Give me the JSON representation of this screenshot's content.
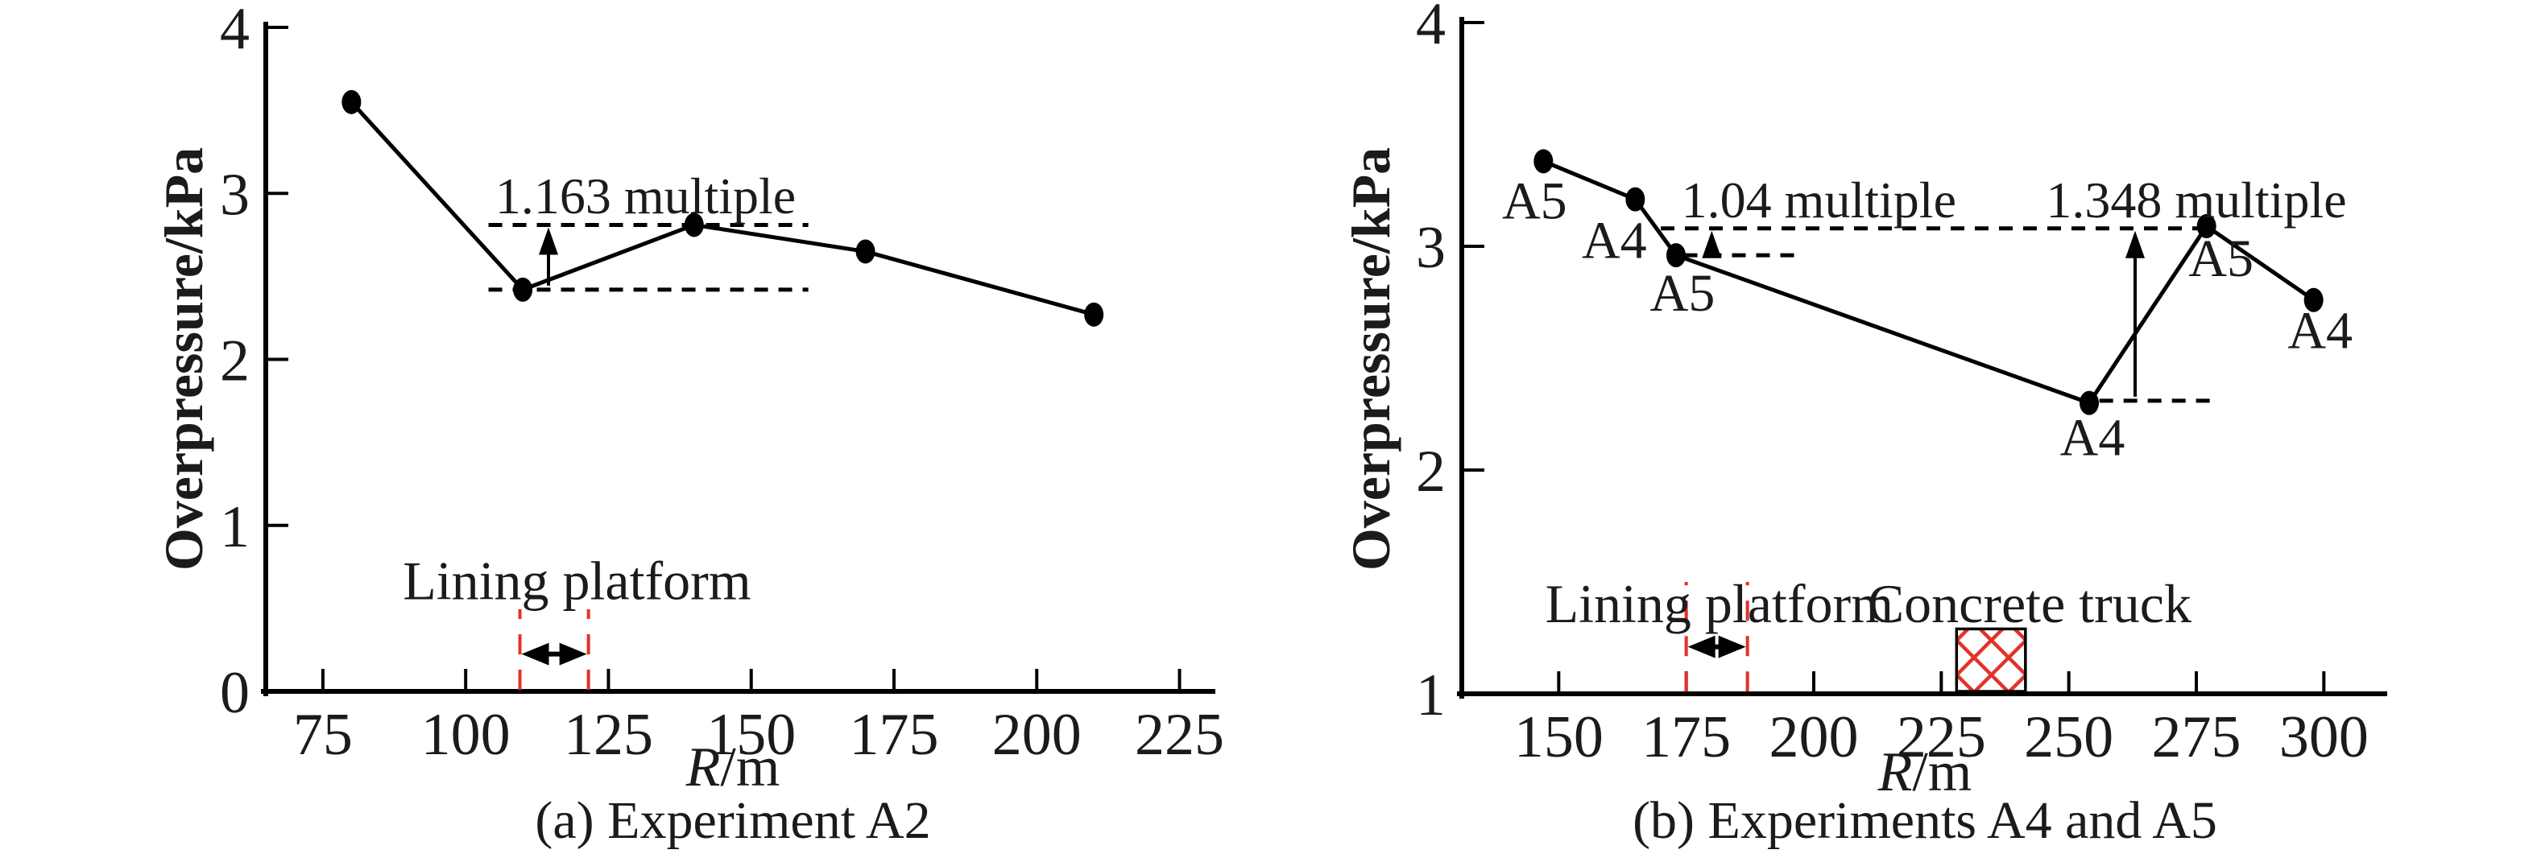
{
  "figure": {
    "background": "#ffffff",
    "ink_color": "#000000",
    "text_color": "#1b1b1b",
    "red_dashed_color": "#e23228"
  },
  "chart_data": [
    {
      "type": "line",
      "caption": "(a) Experiment A2",
      "xlabel_var": "R",
      "xlabel_unit": "/m",
      "ylabel": "Overpressure/kPa",
      "xlim": [
        65,
        230
      ],
      "ylim": [
        0,
        4
      ],
      "xticks": [
        75,
        100,
        125,
        150,
        175,
        200,
        225
      ],
      "yticks": [
        0,
        1,
        2,
        3,
        4
      ],
      "grid": false,
      "legend": "none",
      "series": [
        {
          "name": "A2",
          "points": [
            [
              80,
              3.55
            ],
            [
              110,
              2.42
            ],
            [
              140,
              2.81
            ],
            [
              170,
              2.65
            ],
            [
              210,
              2.27
            ]
          ],
          "point_labels": [
            "",
            "",
            "",
            "",
            ""
          ],
          "label_offsets": []
        }
      ],
      "annotations": {
        "labels": [
          {
            "text": "1.163 multiple",
            "x": 131.5,
            "y": 2.88
          }
        ],
        "h_dashes": [
          {
            "y": 2.81,
            "x1": 104,
            "x2": 160
          },
          {
            "y": 2.42,
            "x1": 104,
            "x2": 160
          }
        ],
        "up_arrows": [
          {
            "x": 114.5,
            "y1": 2.42,
            "y2": 2.81
          }
        ],
        "platform": {
          "label": "Lining platform",
          "label_x": 119.5,
          "label_y": 0.555,
          "x1": 109.5,
          "x2": 121.5,
          "line_y1": 0.01,
          "line_y2": 0.495,
          "arrow_y": 0.225
        }
      }
    },
    {
      "type": "line",
      "caption": "(b) Experiments A4 and A5",
      "xlabel_var": "R",
      "xlabel_unit": "/m",
      "ylabel": "Overpressure/kPa",
      "xlim": [
        131,
        311
      ],
      "ylim": [
        1,
        4
      ],
      "xticks": [
        150,
        175,
        200,
        225,
        250,
        275,
        300
      ],
      "yticks": [
        1,
        2,
        3,
        4
      ],
      "grid": false,
      "legend": "none",
      "series": [
        {
          "name": "A4 and A5",
          "points": [
            [
              147,
              3.38
            ],
            [
              165,
              3.21
            ],
            [
              173,
              2.96
            ],
            [
              254,
              2.3
            ],
            [
              277,
              3.09
            ],
            [
              298,
              2.76
            ]
          ],
          "point_labels": [
            "A5",
            "A4",
            "A5",
            "A4",
            "A5",
            "A4"
          ],
          "label_offsets": [
            [
              -11,
              48
            ],
            [
              -26,
              50
            ],
            [
              8,
              46
            ],
            [
              4,
              42
            ],
            [
              18,
              39
            ],
            [
              8,
              37
            ]
          ]
        }
      ],
      "annotations": {
        "labels": [
          {
            "text": "1.04 multiple",
            "x": 201,
            "y": 3.13
          },
          {
            "text": "1.348 multiple",
            "x": 275,
            "y": 3.13
          }
        ],
        "h_dashes": [
          {
            "y": 3.08,
            "x1": 170,
            "x2": 277
          },
          {
            "y": 2.96,
            "x1": 174.5,
            "x2": 198
          },
          {
            "y": 2.31,
            "x1": 256,
            "x2": 278
          }
        ],
        "up_arrows": [
          {
            "x": 180,
            "y1": 2.96,
            "y2": 3.08
          },
          {
            "x": 263,
            "y1": 2.31,
            "y2": 3.08
          }
        ],
        "platform": {
          "label": "Lining platform",
          "label_x": 181.5,
          "label_y": 1.32,
          "x1": 175,
          "x2": 187,
          "line_y1": 1.01,
          "line_y2": 1.5,
          "arrow_y": 1.21
        },
        "truck": {
          "label": "Concrete truck",
          "label_x": 242.3,
          "label_y": 1.32,
          "x1": 228,
          "x2": 241.5,
          "y_top": 1.29
        }
      }
    }
  ]
}
